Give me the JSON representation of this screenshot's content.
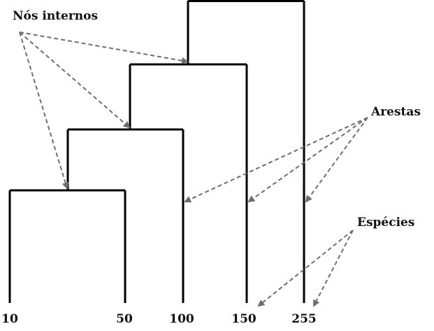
{
  "labels": {
    "internal_nodes": "Nós internos",
    "edges": "Arestas",
    "species": "Espécies"
  },
  "species": [
    "10",
    "50",
    "100",
    "150",
    "255"
  ],
  "colors": {
    "tree": "#000000",
    "arrow": "#6e6e6e",
    "text": "#111111"
  }
}
